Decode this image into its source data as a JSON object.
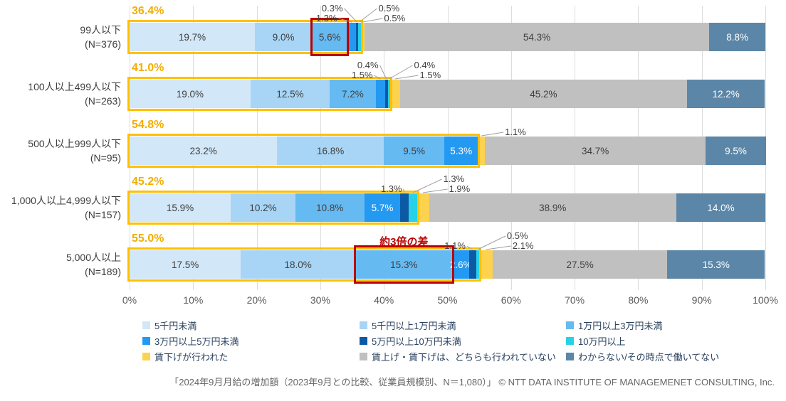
{
  "chart_data": {
    "type": "bar",
    "orientation": "horizontal-stacked",
    "xlabel": "",
    "ylabel": "",
    "xlim": [
      0,
      100
    ],
    "grid": true,
    "legend_position": "bottom",
    "x_ticks": [
      "0%",
      "10%",
      "20%",
      "30%",
      "40%",
      "50%",
      "60%",
      "70%",
      "80%",
      "90%",
      "100%"
    ],
    "series_names": [
      "5千円未満",
      "5千円以上1万円未満",
      "1万円以上3万円未満",
      "3万円以上5万円未満",
      "5万円以上10万円未満",
      "10万円以上",
      "賃下げが行われた",
      "賃上げ・賃下げは、どちらも行われていない",
      "わからない/その時点で働いてない"
    ],
    "series_colors": [
      "#d2e7f7",
      "#a8d5f5",
      "#66baf2",
      "#2499f2",
      "#0c5aa6",
      "#29d1e6",
      "#fdd24f",
      "#c0c0c0",
      "#5b86a7"
    ],
    "highlight_outline_color": "#ffc000",
    "red_accent_color": "#b90000",
    "rows": [
      {
        "category_line1": "99人以下",
        "category_line2": "(N=376)",
        "total_label": "36.4%",
        "values": [
          19.7,
          9.0,
          5.6,
          1.3,
          0.3,
          0.5,
          0.5,
          54.3,
          8.8
        ],
        "callout_indices": [
          3,
          4,
          5,
          6
        ],
        "red_box_index": 2
      },
      {
        "category_line1": "100人以上499人以下",
        "category_line2": "(N=263)",
        "total_label": "41.0%",
        "values": [
          19.0,
          12.5,
          7.2,
          1.5,
          0.4,
          0.4,
          1.5,
          45.2,
          12.2
        ],
        "callout_indices": [
          3,
          4,
          5,
          6
        ]
      },
      {
        "category_line1": "500人以上999人以下",
        "category_line2": "(N=95)",
        "total_label": "54.8%",
        "values": [
          23.2,
          16.8,
          9.5,
          5.3,
          0,
          0,
          1.1,
          34.7,
          9.5
        ],
        "callout_indices": [
          6
        ]
      },
      {
        "category_line1": "1,000人以上4,999人以下",
        "category_line2": "(N=157)",
        "total_label": "45.2%",
        "values": [
          15.9,
          10.2,
          10.8,
          5.7,
          1.3,
          1.3,
          1.9,
          38.9,
          14.0
        ],
        "callout_indices": [
          4,
          5,
          6
        ]
      },
      {
        "category_line1": "5,000人以上",
        "category_line2": "(N=189)",
        "total_label": "55.0%",
        "values": [
          17.5,
          18.0,
          15.3,
          2.6,
          1.1,
          0.5,
          2.1,
          27.5,
          15.3
        ],
        "callout_indices": [
          4,
          5,
          6
        ],
        "red_box_index": 2,
        "red_annotation": "約3倍の差"
      }
    ]
  },
  "footer": {
    "caption": "「2024年9月月給の増加額（2023年9月との比較、従業員規模別、N＝1,080）」 © NTT DATA INSTITUTE OF MANAGEMENET CONSULTING, Inc."
  }
}
